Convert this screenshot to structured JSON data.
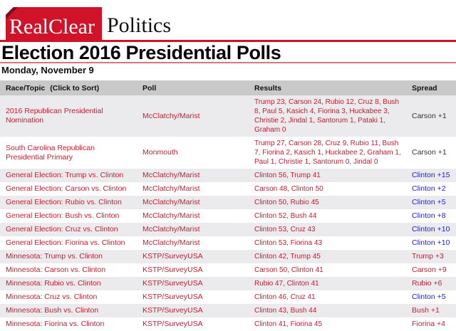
{
  "logo": {
    "primary": "RealClear",
    "secondary": "Politics"
  },
  "page_title": "Election 2016 Presidential Polls",
  "date_heading": "Monday, November 9",
  "colors": {
    "brand_red": "#d01329",
    "fold_dark_red": "#7a1220",
    "pink_rule": "#dc747c",
    "header_gray": "#c9c9c9",
    "alt_row_gray": "#ebebee",
    "link_red": "#c41e31",
    "spread_blue": "#2222cc",
    "spread_black": "#333333"
  },
  "table": {
    "headers": {
      "race": "Race/Topic",
      "sort_hint": "(Click to Sort)",
      "poll": "Poll",
      "results": "Results",
      "spread": "Spread"
    },
    "rows": [
      {
        "race": "2016 Republican Presidential Nomination",
        "poll": "McClatchy/Marist",
        "results": "Trump 23, Carson 24, Rubio 12, Cruz 8, Bush 8, Paul 5, Kasich 4, Fiorina 3, Huckabee 3, Christie 2, Jindal 1, Santorum 1, Pataki 1, Graham 0",
        "spread": "Carson +1",
        "spread_color": "black"
      },
      {
        "race": "South Carolina Republican Presidential Primary",
        "poll": "Monmouth",
        "results": "Trump 27, Carson 28, Cruz 9, Rubio 11, Bush 7, Fiorina 2, Kasich 1, Huckabee 2, Graham 1, Paul 1, Christie 1, Santorum 0, Jindal 0",
        "spread": "Carson +1",
        "spread_color": "black"
      },
      {
        "race": "General Election: Trump vs. Clinton",
        "poll": "McClatchy/Marist",
        "results": "Clinton 56, Trump 41",
        "spread": "Clinton +15",
        "spread_color": "blue"
      },
      {
        "race": "General Election: Carson vs. Clinton",
        "poll": "McClatchy/Marist",
        "results": "Carson 48, Clinton 50",
        "spread": "Clinton +2",
        "spread_color": "blue"
      },
      {
        "race": "General Election: Rubio vs. Clinton",
        "poll": "McClatchy/Marist",
        "results": "Clinton 50, Rubio 45",
        "spread": "Clinton +5",
        "spread_color": "blue"
      },
      {
        "race": "General Election: Bush vs. Clinton",
        "poll": "McClatchy/Marist",
        "results": "Clinton 52, Bush 44",
        "spread": "Clinton +8",
        "spread_color": "blue"
      },
      {
        "race": "General Election: Cruz vs. Clinton",
        "poll": "McClatchy/Marist",
        "results": "Clinton 53, Cruz 43",
        "spread": "Clinton +10",
        "spread_color": "blue"
      },
      {
        "race": "General Election: Fiorina vs. Clinton",
        "poll": "McClatchy/Marist",
        "results": "Clinton 53, Fiorina 43",
        "spread": "Clinton +10",
        "spread_color": "blue"
      },
      {
        "race": "Minnesota: Trump vs. Clinton",
        "poll": "KSTP/SurveyUSA",
        "results": "Clinton 42, Trump 45",
        "spread": "Trump +3",
        "spread_color": "red"
      },
      {
        "race": "Minnesota: Carson vs. Clinton",
        "poll": "KSTP/SurveyUSA",
        "results": "Carson 50, Clinton 41",
        "spread": "Carson +9",
        "spread_color": "red"
      },
      {
        "race": "Minnesota: Rubio vs. Clinton",
        "poll": "KSTP/SurveyUSA",
        "results": "Rubio 47, Clinton 41",
        "spread": "Rubio +6",
        "spread_color": "red"
      },
      {
        "race": "Minnesota: Cruz vs. Clinton",
        "poll": "KSTP/SurveyUSA",
        "results": "Clinton 46, Cruz 41",
        "spread": "Clinton +5",
        "spread_color": "blue"
      },
      {
        "race": "Minnesota: Bush vs. Clinton",
        "poll": "KSTP/SurveyUSA",
        "results": "Clinton 43, Bush 44",
        "spread": "Bush +1",
        "spread_color": "red"
      },
      {
        "race": "Minnesota: Fiorina vs. Clinton",
        "poll": "KSTP/SurveyUSA",
        "results": "Clinton 41, Fiorina 45",
        "spread": "Fiorina +4",
        "spread_color": "red"
      }
    ]
  }
}
